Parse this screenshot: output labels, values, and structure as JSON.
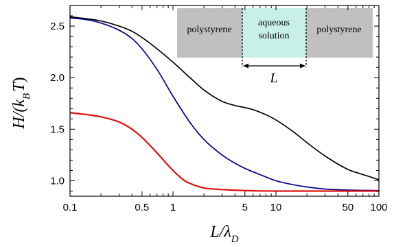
{
  "chart_data": {
    "type": "line",
    "xscale": "log",
    "xlim": [
      0.1,
      100
    ],
    "ylim": [
      0.85,
      2.7
    ],
    "xlabel": {
      "main": "L/λ",
      "sub": "D"
    },
    "ylabel": {
      "main": "H/(k",
      "sub": "B",
      "italic_tail": "T",
      "close": ")"
    },
    "x_ticks": [
      {
        "value": 0.1,
        "label": "0.1"
      },
      {
        "value": 0.5,
        "label": "0.5"
      },
      {
        "value": 1,
        "label": "1"
      },
      {
        "value": 5,
        "label": "5"
      },
      {
        "value": 10,
        "label": "10"
      },
      {
        "value": 50,
        "label": "50"
      },
      {
        "value": 100,
        "label": "100"
      }
    ],
    "y_ticks": [
      {
        "value": 1.0,
        "label": "1.0"
      },
      {
        "value": 1.5,
        "label": "1.5"
      },
      {
        "value": 2.0,
        "label": "2.0"
      },
      {
        "value": 2.5,
        "label": "2.5"
      }
    ],
    "series": [
      {
        "color": "#000000",
        "points": [
          [
            0.1,
            2.59
          ],
          [
            0.15,
            2.57
          ],
          [
            0.2,
            2.55
          ],
          [
            0.3,
            2.5
          ],
          [
            0.4,
            2.45
          ],
          [
            0.5,
            2.39
          ],
          [
            0.7,
            2.28
          ],
          [
            1.0,
            2.15
          ],
          [
            1.5,
            1.99
          ],
          [
            2.0,
            1.88
          ],
          [
            3.0,
            1.77
          ],
          [
            4.0,
            1.73
          ],
          [
            5.0,
            1.71
          ],
          [
            6.0,
            1.69
          ],
          [
            8.0,
            1.64
          ],
          [
            10.0,
            1.59
          ],
          [
            15.0,
            1.47
          ],
          [
            20.0,
            1.37
          ],
          [
            30.0,
            1.24
          ],
          [
            50.0,
            1.11
          ],
          [
            70.0,
            1.06
          ],
          [
            100.0,
            1.01
          ]
        ]
      },
      {
        "color": "#00008c",
        "points": [
          [
            0.1,
            2.58
          ],
          [
            0.15,
            2.56
          ],
          [
            0.2,
            2.53
          ],
          [
            0.3,
            2.46
          ],
          [
            0.4,
            2.38
          ],
          [
            0.5,
            2.28
          ],
          [
            0.7,
            2.08
          ],
          [
            1.0,
            1.82
          ],
          [
            1.5,
            1.55
          ],
          [
            2.0,
            1.4
          ],
          [
            3.0,
            1.25
          ],
          [
            4.0,
            1.17
          ],
          [
            5.0,
            1.12
          ],
          [
            7.0,
            1.06
          ],
          [
            10.0,
            1.0
          ],
          [
            15.0,
            0.96
          ],
          [
            20.0,
            0.94
          ],
          [
            30.0,
            0.92
          ],
          [
            50.0,
            0.91
          ],
          [
            100.0,
            0.905
          ]
        ]
      },
      {
        "color": "#e01010",
        "points": [
          [
            0.1,
            1.66
          ],
          [
            0.15,
            1.64
          ],
          [
            0.2,
            1.62
          ],
          [
            0.3,
            1.57
          ],
          [
            0.4,
            1.5
          ],
          [
            0.5,
            1.42
          ],
          [
            0.7,
            1.27
          ],
          [
            1.0,
            1.1
          ],
          [
            1.3,
            1.0
          ],
          [
            1.7,
            0.95
          ],
          [
            2.0,
            0.93
          ],
          [
            3.0,
            0.915
          ],
          [
            5.0,
            0.905
          ],
          [
            10.0,
            0.9
          ],
          [
            100.0,
            0.9
          ]
        ]
      }
    ],
    "inset": {
      "left_label": "polystyrene",
      "middle_label_1": "aqueous",
      "middle_label_2": "solution",
      "right_label": "polystyrene",
      "gap_label": "L",
      "colors": {
        "polystyrene": "#c0c0c0",
        "solution": "#c8f0e6"
      }
    }
  }
}
